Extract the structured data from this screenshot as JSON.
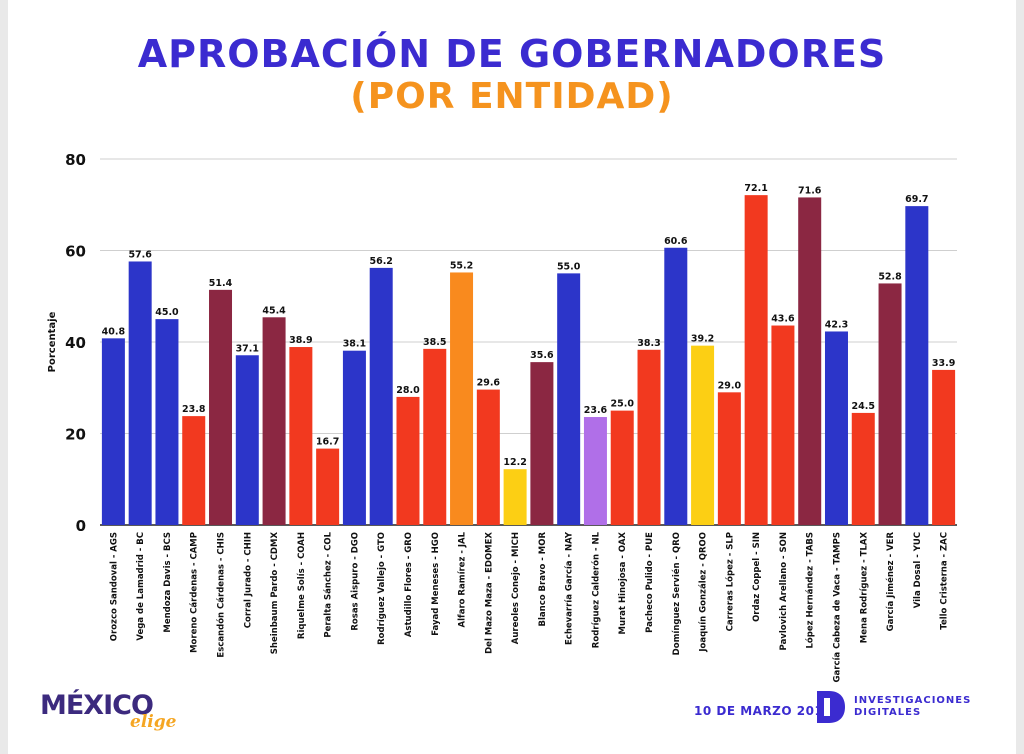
{
  "footer": {
    "date": "10 DE MARZO 2019",
    "logo_left_main": "MÉXICO",
    "logo_left_script": "elige",
    "logo_right_line1": "INVESTIGACIONES",
    "logo_right_line2": "DIGITALES"
  },
  "chart_data": {
    "type": "bar",
    "title": "APROBACIÓN DE GOBERNADORES",
    "subtitle": "(POR ENTIDAD)",
    "xlabel": "",
    "ylabel": "Porcentaje",
    "ylim": [
      0,
      80
    ],
    "yticks": [
      0,
      20,
      40,
      60,
      80
    ],
    "grid": true,
    "palette": {
      "blue": "#2c35c9",
      "maroon": "#8b2742",
      "red": "#f2391f",
      "orange": "#f98a1e",
      "yellow": "#fccf14",
      "purple": "#b06fe8"
    },
    "categories": [
      "Orozco Sandoval - AGS",
      "Vega de Lamadrid - BC",
      "Mendoza Davis - BCS",
      "Moreno Cárdenas - CAMP",
      "Escandón Cárdenas - CHIS",
      "Corral Jurado - CHIH",
      "Sheinbaum Pardo - CDMX",
      "Riquelme Solís - COAH",
      "Peralta Sánchez - COL",
      "Rosas Aispuro - DGO",
      "Rodríguez Vallejo - GTO",
      "Astudillo Flores - GRO",
      "Fayad Meneses - HGO",
      "Alfaro Ramírez - JAL",
      "Del Mazo Maza - EDOMEX",
      "Aureoles Conejo - MICH",
      "Blanco Bravo - MOR",
      "Echevarría García - NAY",
      "Rodríguez Calderón - NL",
      "Murat Hinojosa - OAX",
      "Pacheco Pulido - PUE",
      "Domínguez Servién - QRO",
      "Joaquín González - QROO",
      "Carreras López - SLP",
      "Ordaz Coppel - SIN",
      "Pavlovich Arellano - SON",
      "López Hernández - TABS",
      "García Cabeza de Vaca - TAMPS",
      "Mena Rodríguez - TLAX",
      "García Jiménez - VER",
      "Vila Dosal - YUC",
      "Tello Cristerna - ZAC"
    ],
    "values": [
      40.8,
      57.6,
      45.0,
      23.8,
      51.4,
      37.1,
      45.4,
      38.9,
      16.7,
      38.1,
      56.2,
      28.0,
      38.5,
      55.2,
      29.6,
      12.2,
      35.6,
      55.0,
      23.6,
      25.0,
      38.3,
      60.6,
      39.2,
      29.0,
      72.1,
      43.6,
      71.6,
      42.3,
      24.5,
      52.8,
      69.7,
      33.9
    ],
    "value_labels": [
      "40.8",
      "57.6",
      "45.0",
      "23.8",
      "51.4",
      "37.1",
      "45.4",
      "38.9",
      "16.7",
      "38.1",
      "56.2",
      "28.0",
      "38.5",
      "55.2",
      "29.6",
      "12.2",
      "35.6",
      "55.0",
      "23.6",
      "25.0",
      "38.3",
      "60.6",
      "39.2",
      "29.0",
      "72.1",
      "43.6",
      "71.6",
      "42.3",
      "24.5",
      "52.8",
      "69.7",
      "33.9"
    ],
    "bar_colors": [
      "blue",
      "blue",
      "blue",
      "red",
      "maroon",
      "blue",
      "maroon",
      "red",
      "red",
      "blue",
      "blue",
      "red",
      "red",
      "orange",
      "red",
      "yellow",
      "maroon",
      "blue",
      "purple",
      "red",
      "red",
      "blue",
      "yellow",
      "red",
      "red",
      "red",
      "maroon",
      "blue",
      "red",
      "maroon",
      "blue",
      "red"
    ]
  }
}
